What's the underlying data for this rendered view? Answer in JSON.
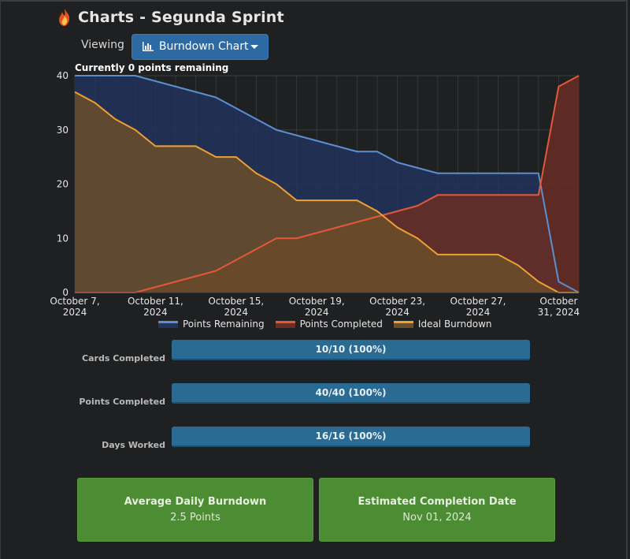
{
  "app": {
    "title": "Charts - Segunda Sprint"
  },
  "viewing": {
    "label": "Viewing",
    "selected": "Burndown Chart"
  },
  "chart_title": "Currently 0 points remaining",
  "chart_data": {
    "type": "area",
    "title": "Currently 0 points remaining",
    "x_dates": [
      "2024-10-07",
      "2024-10-08",
      "2024-10-09",
      "2024-10-10",
      "2024-10-11",
      "2024-10-12",
      "2024-10-13",
      "2024-10-14",
      "2024-10-15",
      "2024-10-16",
      "2024-10-17",
      "2024-10-18",
      "2024-10-19",
      "2024-10-20",
      "2024-10-21",
      "2024-10-22",
      "2024-10-23",
      "2024-10-24",
      "2024-10-25",
      "2024-10-26",
      "2024-10-27",
      "2024-10-28",
      "2024-10-29",
      "2024-10-30",
      "2024-10-31",
      "2024-11-01"
    ],
    "x_ticks": [
      "October 7, 2024",
      "October 11, 2024",
      "October 15, 2024",
      "October 19, 2024",
      "October 23, 2024",
      "October 27, 2024",
      "October 31, 2024"
    ],
    "x_tick_lines": [
      [
        "October 7,",
        "2024"
      ],
      [
        "October 11,",
        "2024"
      ],
      [
        "October 15,",
        "2024"
      ],
      [
        "October 19,",
        "2024"
      ],
      [
        "October 23,",
        "2024"
      ],
      [
        "October 27,",
        "2024"
      ],
      [
        "October",
        "31, 2024"
      ]
    ],
    "y_ticks": [
      0,
      10,
      20,
      30,
      40
    ],
    "ylim": [
      0,
      40
    ],
    "series": [
      {
        "name": "Points Remaining",
        "color": "#5b8fd0",
        "fill": "#22345a",
        "values": [
          40,
          40,
          40,
          40,
          39,
          38,
          37,
          36,
          34,
          32,
          30,
          29,
          28,
          27,
          26,
          26,
          24,
          23,
          22,
          22,
          22,
          22,
          22,
          22,
          2,
          0
        ]
      },
      {
        "name": "Points Completed",
        "color": "#e4583a",
        "fill": "#6a2e24",
        "values": [
          0,
          0,
          0,
          0,
          1,
          2,
          3,
          4,
          6,
          8,
          10,
          10,
          11,
          12,
          13,
          14,
          15,
          16,
          18,
          18,
          18,
          18,
          18,
          18,
          38,
          40
        ]
      },
      {
        "name": "Ideal Burndown",
        "color": "#f0a030",
        "fill": "#6a4d2a",
        "values": [
          37,
          35,
          32,
          30,
          27,
          27,
          27,
          25,
          25,
          22,
          20,
          17,
          17,
          17,
          17,
          15,
          12,
          10,
          7,
          7,
          7,
          7,
          5,
          2,
          0,
          0
        ]
      }
    ],
    "grid": true,
    "legend_position": "bottom"
  },
  "stats": [
    {
      "label": "Cards Completed",
      "value": "10/10 (100%)",
      "percent": 100
    },
    {
      "label": "Points Completed",
      "value": "40/40 (100%)",
      "percent": 100
    },
    {
      "label": "Days Worked",
      "value": "16/16 (100%)",
      "percent": 100
    }
  ],
  "cards": [
    {
      "title": "Average Daily Burndown",
      "value": "2.5 Points",
      "color": "#4c8c32"
    },
    {
      "title": "Estimated Completion Date",
      "value": "Nov 01, 2024",
      "color": "#4c8c32"
    }
  ],
  "icons": {
    "title_icon": "fire-icon",
    "chart_icon": "bar-chart-icon",
    "dropdown": "caret-down-icon"
  }
}
